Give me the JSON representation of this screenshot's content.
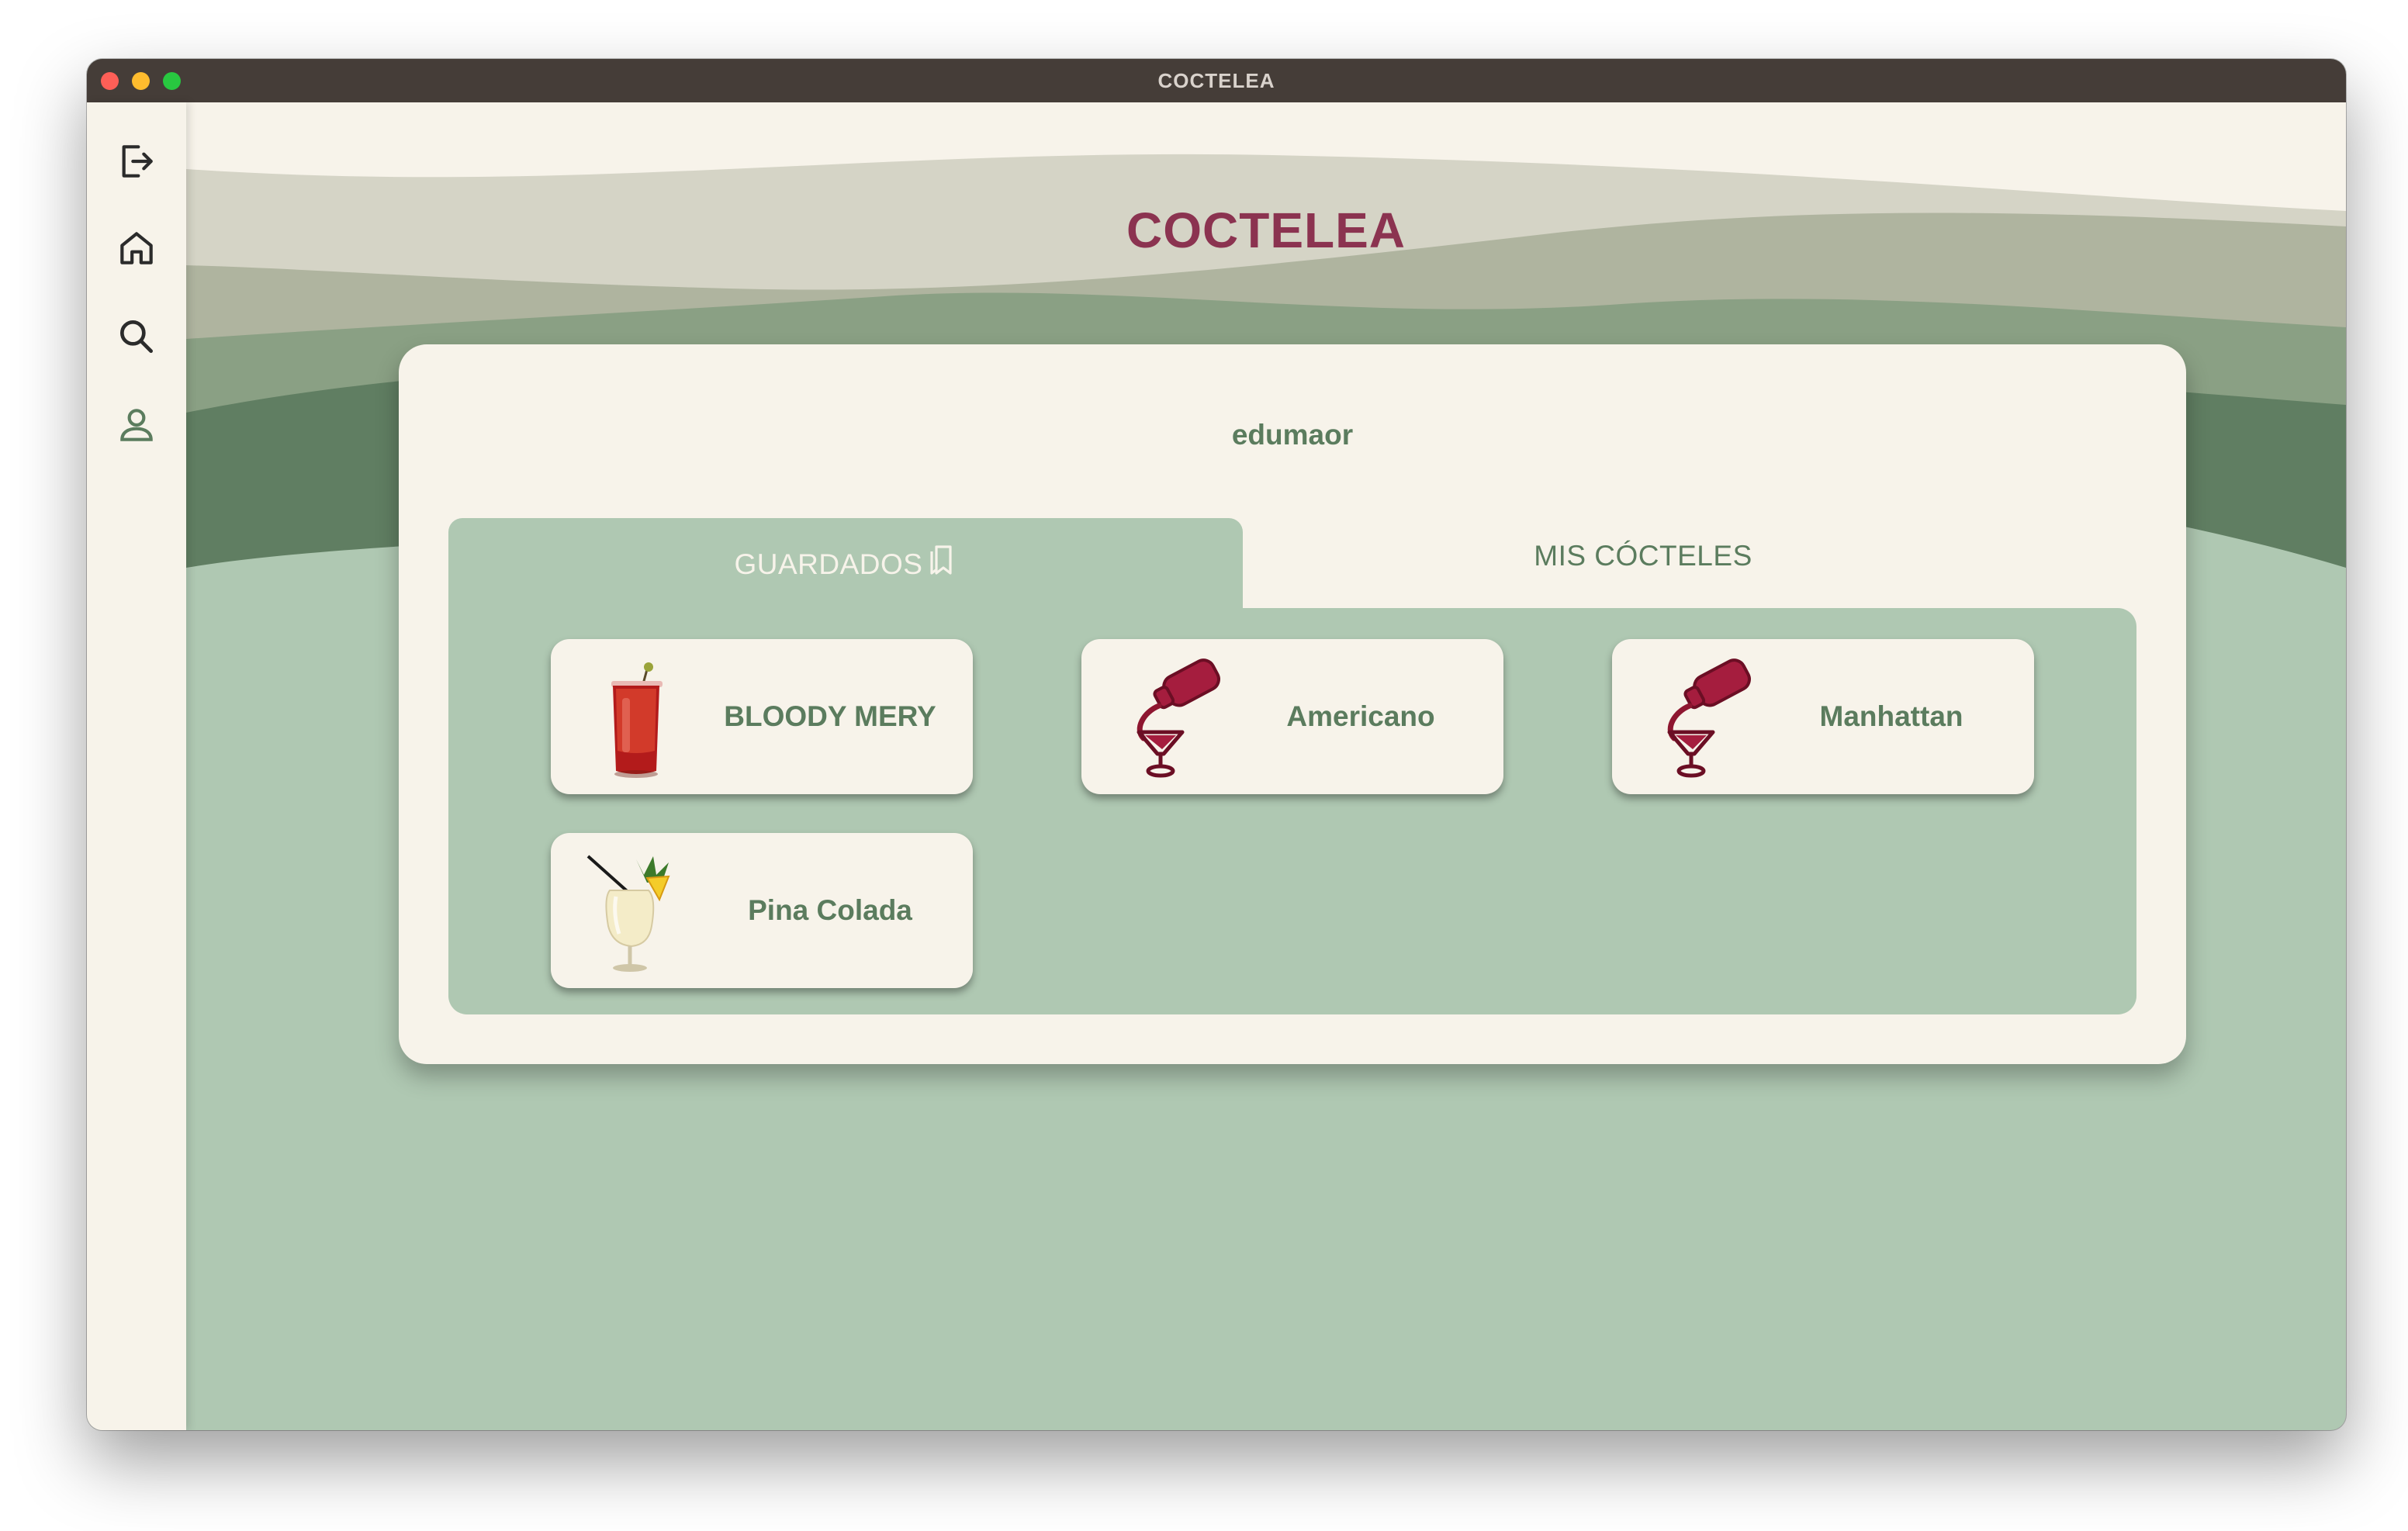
{
  "window": {
    "title": "COCTELEA"
  },
  "sidebar": {
    "items": [
      {
        "icon": "logout-icon"
      },
      {
        "icon": "home-icon"
      },
      {
        "icon": "search-icon"
      },
      {
        "icon": "user-icon"
      }
    ]
  },
  "header": {
    "title": "COCTELEA"
  },
  "profile": {
    "username": "edumaor"
  },
  "tabs": {
    "saved_label": "GUARDADOS",
    "mine_label": "MIS CÓCTELES",
    "active": "saved"
  },
  "cocktails": [
    {
      "name": "BLOODY MERY",
      "image": "red-cocktail-glass"
    },
    {
      "name": "Americano",
      "image": "shaker-pouring-placeholder"
    },
    {
      "name": "Manhattan",
      "image": "shaker-pouring-placeholder"
    },
    {
      "name": "Pina Colada",
      "image": "pina-colada-glass"
    }
  ],
  "colors": {
    "accent": "#8b3350",
    "green": "#5b7c5e",
    "sage": "#afc8b2",
    "cream": "#f7f3ea",
    "titlebar": "#453d38"
  }
}
